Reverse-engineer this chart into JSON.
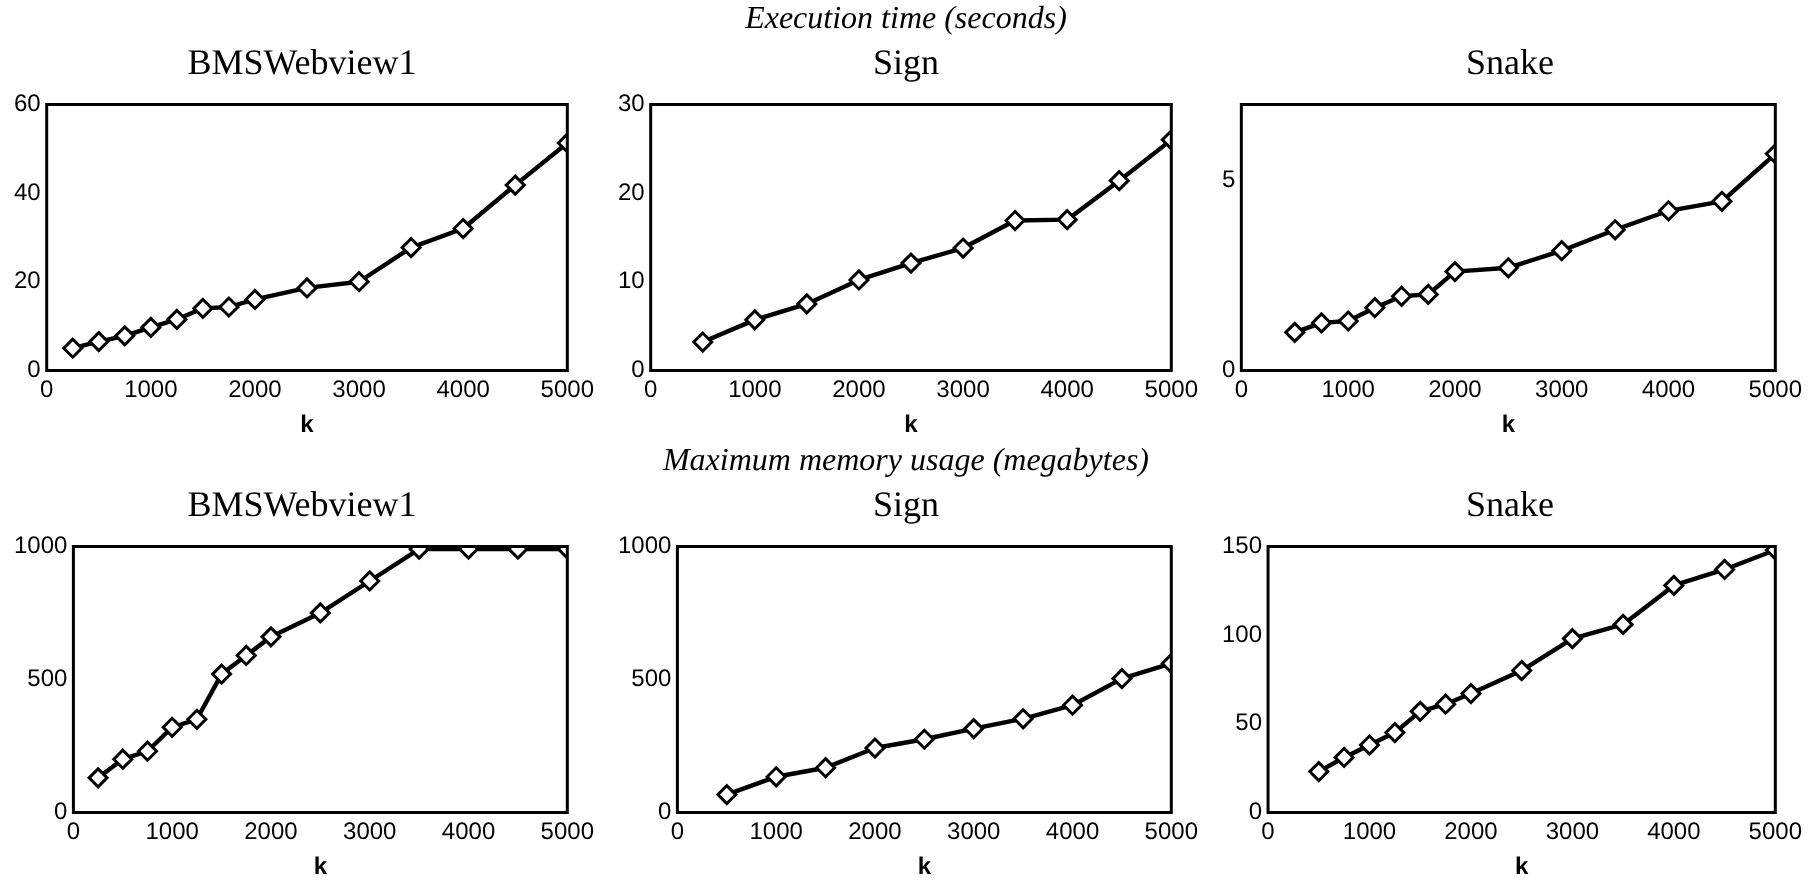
{
  "chart_data": [
    {
      "type": "line",
      "title": "BMSWebview1",
      "xlabel": "k",
      "x": [
        250,
        500,
        750,
        1000,
        1250,
        1500,
        1750,
        2000,
        2500,
        3000,
        3500,
        4000,
        4500,
        5000
      ],
      "series": [
        {
          "color": "#000000",
          "values": [
            5,
            6.5,
            7.8,
            9.7,
            11.5,
            14,
            14.3,
            16,
            18.6,
            20,
            27.7,
            32,
            41.8,
            51.3
          ]
        }
      ],
      "xlim": [
        0,
        5000
      ],
      "xticks": [
        0,
        1000,
        2000,
        3000,
        4000,
        5000
      ],
      "ylim": [
        0,
        60
      ],
      "yticks": [
        0,
        20,
        40,
        60
      ],
      "marker": "diamond",
      "line_style": "solid",
      "grid": false,
      "legend": false
    },
    {
      "type": "line",
      "subtitle": "Execution time (seconds)",
      "title": "Sign",
      "xlabel": "k",
      "x": [
        500,
        1000,
        1500,
        2000,
        2500,
        3000,
        3500,
        4000,
        4500,
        5000
      ],
      "series": [
        {
          "color": "#000000",
          "values": [
            3.2,
            5.7,
            7.5,
            10.2,
            12.1,
            13.8,
            16.9,
            17,
            21.4,
            26
          ]
        }
      ],
      "xlim": [
        0,
        5000
      ],
      "xticks": [
        0,
        1000,
        2000,
        3000,
        4000,
        5000
      ],
      "ylim": [
        0,
        30
      ],
      "yticks": [
        0,
        10,
        20,
        30
      ],
      "marker": "diamond",
      "line_style": "solid",
      "grid": false,
      "legend": false
    },
    {
      "type": "line",
      "title": "Snake",
      "xlabel": "k",
      "x": [
        500,
        750,
        1000,
        1250,
        1500,
        1750,
        2000,
        2500,
        3000,
        3500,
        4000,
        4500,
        5000
      ],
      "series": [
        {
          "color": "#000000",
          "values": [
            1,
            1.25,
            1.3,
            1.65,
            1.95,
            2,
            2.6,
            2.7,
            3.15,
            3.7,
            4.2,
            4.45,
            5.7
          ]
        }
      ],
      "xlim": [
        0,
        5000
      ],
      "xticks": [
        0,
        1000,
        2000,
        3000,
        4000,
        5000
      ],
      "ylim": [
        0,
        7
      ],
      "yticks": [
        0,
        5
      ],
      "marker": "diamond",
      "line_style": "solid",
      "grid": false,
      "legend": false
    },
    {
      "type": "line",
      "title": "BMSWebview1",
      "xlabel": "k",
      "x": [
        250,
        500,
        750,
        1000,
        1250,
        1500,
        1750,
        2000,
        2500,
        3000,
        3500,
        4000,
        4500,
        5000
      ],
      "series": [
        {
          "color": "#000000",
          "values": [
            130,
            200,
            230,
            320,
            350,
            520,
            590,
            660,
            750,
            870,
            990,
            990,
            990,
            990
          ]
        }
      ],
      "xlim": [
        0,
        5000
      ],
      "xticks": [
        0,
        1000,
        2000,
        3000,
        4000,
        5000
      ],
      "ylim": [
        0,
        1000
      ],
      "yticks": [
        0,
        500,
        1000
      ],
      "marker": "diamond",
      "line_style": "solid",
      "grid": false,
      "legend": false
    },
    {
      "type": "line",
      "subtitle": "Maximum memory usage (megabytes)",
      "title": "Sign",
      "xlabel": "k",
      "x": [
        500,
        1000,
        1500,
        2000,
        2500,
        3000,
        3500,
        4000,
        4500,
        5000
      ],
      "series": [
        {
          "color": "#000000",
          "values": [
            67,
            134,
            168,
            242,
            275,
            315,
            352,
            403,
            503,
            560
          ]
        }
      ],
      "xlim": [
        0,
        5000
      ],
      "xticks": [
        0,
        1000,
        2000,
        3000,
        4000,
        5000
      ],
      "ylim": [
        0,
        1000
      ],
      "yticks": [
        0,
        500,
        1000
      ],
      "marker": "diamond",
      "line_style": "solid",
      "grid": false,
      "legend": false
    },
    {
      "type": "line",
      "title": "Snake",
      "xlabel": "k",
      "x": [
        500,
        750,
        1000,
        1250,
        1500,
        1750,
        2000,
        2500,
        3000,
        3500,
        4000,
        4500,
        5000
      ],
      "series": [
        {
          "color": "#000000",
          "values": [
            23,
            31,
            38,
            45,
            57,
            61,
            67,
            80,
            98,
            106,
            128,
            137,
            148
          ]
        }
      ],
      "xlim": [
        0,
        5000
      ],
      "xticks": [
        0,
        1000,
        2000,
        3000,
        4000,
        5000
      ],
      "ylim": [
        0,
        150
      ],
      "yticks": [
        0,
        50,
        100,
        150
      ],
      "marker": "diamond",
      "line_style": "solid",
      "grid": false,
      "legend": false
    }
  ]
}
